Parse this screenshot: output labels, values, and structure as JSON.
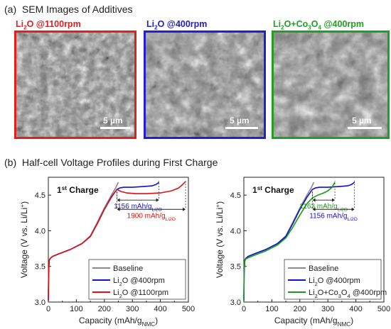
{
  "panel_a": {
    "label": "(a)",
    "title": "SEM Images of Additives",
    "images": [
      {
        "label_parts": [
          "Li",
          "2",
          "O @1100rpm"
        ],
        "color": "#e02020",
        "scale": "5 µm"
      },
      {
        "label_parts": [
          "Li",
          "2",
          "O @400rpm"
        ],
        "color": "#2020d0",
        "scale": "5 µm"
      },
      {
        "label_parts": [
          "Li",
          "2",
          "O+Co",
          "3",
          "O",
          "4",
          " @400rpm"
        ],
        "color": "#20a020",
        "scale": "5 µm"
      }
    ]
  },
  "panel_b": {
    "label": "(b)",
    "title": "Half-cell Voltage Profiles during First Charge"
  },
  "colors": {
    "baseline": "#8a8a8a",
    "li2o_400": "#1010d0",
    "li2o_1100": "#e01010",
    "co3o4": "#10a010"
  },
  "chart_data": [
    {
      "type": "line",
      "annotation_title": "1st Charge",
      "xlabel": "Capacity (mAh/gNMC)",
      "ylabel": "Voltage (V vs. Li/Li+)",
      "xlim": [
        0,
        500
      ],
      "ylim": [
        3.0,
        4.75
      ],
      "xticks": [
        "0",
        "100",
        "200",
        "300",
        "400",
        "500"
      ],
      "yticks": [
        "3.0",
        "3.5",
        "4.0",
        "4.5"
      ],
      "legend_position": "bottom-right",
      "series": [
        {
          "name": "Baseline",
          "color_key": "baseline",
          "x": [
            0,
            1,
            3,
            6,
            15,
            40,
            80,
            120,
            150,
            175,
            200,
            225,
            240,
            250
          ],
          "y": [
            3.02,
            3.4,
            3.58,
            3.61,
            3.64,
            3.68,
            3.74,
            3.82,
            3.93,
            4.12,
            4.32,
            4.5,
            4.6,
            4.68
          ]
        },
        {
          "name": "Li2O @400rpm",
          "color_key": "li2o_400",
          "x": [
            0,
            1,
            3,
            6,
            15,
            40,
            80,
            120,
            150,
            175,
            200,
            225,
            245,
            255,
            270,
            300,
            340,
            370,
            385,
            395
          ],
          "y": [
            3.02,
            3.4,
            3.58,
            3.61,
            3.64,
            3.68,
            3.74,
            3.82,
            3.92,
            4.1,
            4.3,
            4.47,
            4.58,
            4.6,
            4.61,
            4.61,
            4.62,
            4.63,
            4.65,
            4.68
          ]
        },
        {
          "name": "Li2O @1100rpm",
          "color_key": "li2o_1100",
          "x": [
            0,
            1,
            3,
            6,
            15,
            40,
            80,
            120,
            150,
            175,
            200,
            225,
            245,
            260,
            280,
            310,
            350,
            400,
            440,
            465,
            480,
            490
          ],
          "y": [
            3.02,
            3.4,
            3.58,
            3.61,
            3.64,
            3.68,
            3.74,
            3.82,
            3.92,
            4.1,
            4.3,
            4.48,
            4.58,
            4.55,
            4.53,
            4.52,
            4.52,
            4.53,
            4.56,
            4.6,
            4.65,
            4.69
          ]
        }
      ],
      "annotations": [
        {
          "text": "1156 mAh/gLi2O",
          "color_key": "li2o_400",
          "x_from": 245,
          "x_to": 395,
          "y": 4.43
        },
        {
          "text": "1900 mAh/gLi2O",
          "color_key": "li2o_1100",
          "x_from": 245,
          "x_to": 490,
          "y": 4.3
        }
      ]
    },
    {
      "type": "line",
      "annotation_title": "1st Charge",
      "xlabel": "Capacity (mAh/gNMC)",
      "ylabel": "Voltage (V vs. Li/Li+)",
      "xlim": [
        0,
        500
      ],
      "ylim": [
        3.0,
        4.75
      ],
      "xticks": [
        "0",
        "100",
        "200",
        "300",
        "400",
        "500"
      ],
      "yticks": [
        "3.0",
        "3.5",
        "4.0",
        "4.5"
      ],
      "legend_position": "bottom-right",
      "series": [
        {
          "name": "Baseline",
          "color_key": "baseline",
          "x": [
            0,
            1,
            3,
            6,
            15,
            40,
            80,
            120,
            150,
            175,
            200,
            225,
            240,
            250
          ],
          "y": [
            3.02,
            3.4,
            3.58,
            3.61,
            3.64,
            3.68,
            3.74,
            3.82,
            3.93,
            4.12,
            4.32,
            4.5,
            4.6,
            4.68
          ]
        },
        {
          "name": "Li2O @400rpm",
          "color_key": "li2o_400",
          "x": [
            0,
            1,
            3,
            6,
            15,
            40,
            80,
            120,
            150,
            175,
            200,
            225,
            245,
            255,
            270,
            300,
            340,
            370,
            385,
            395
          ],
          "y": [
            3.02,
            3.4,
            3.58,
            3.61,
            3.64,
            3.68,
            3.74,
            3.82,
            3.92,
            4.1,
            4.3,
            4.47,
            4.58,
            4.6,
            4.61,
            4.61,
            4.62,
            4.63,
            4.65,
            4.68
          ]
        },
        {
          "name": "Li2O+Co3O4 @400rpm",
          "color_key": "co3o4",
          "x": [
            0,
            1,
            3,
            6,
            15,
            40,
            80,
            120,
            150,
            175,
            200,
            225,
            245,
            265,
            285,
            300,
            315,
            325
          ],
          "y": [
            3.02,
            3.4,
            3.57,
            3.6,
            3.62,
            3.66,
            3.72,
            3.8,
            3.9,
            4.05,
            4.22,
            4.38,
            4.46,
            4.5,
            4.53,
            4.56,
            4.61,
            4.68
          ]
        }
      ],
      "annotations": [
        {
          "text": "1163 mAh/gLi2O",
          "color_key": "co3o4",
          "x_from": 245,
          "x_to": 325,
          "y": 4.43
        },
        {
          "text": "1156 mAh/gLi2O",
          "color_key": "li2o_400",
          "x_from": 245,
          "x_to": 395,
          "y": 4.3
        }
      ]
    }
  ]
}
